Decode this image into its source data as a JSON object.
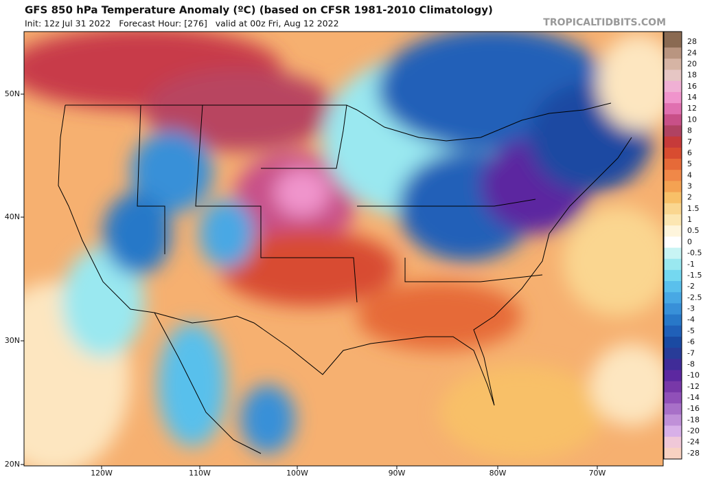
{
  "header": {
    "title": "GFS 850 hPa Temperature Anomaly (ºC) (based on CFSR 1981-2010 Climatology)",
    "subtitle": "Init: 12z Jul 31 2022   Forecast Hour: [276]   valid at 00z Fri, Aug 12 2022",
    "watermark": "TROPICALTIDBITS.COM"
  },
  "map": {
    "lat_labels": [
      "50N",
      "40N",
      "30N",
      "20N"
    ],
    "lon_labels": [
      "120W",
      "110W",
      "100W",
      "90W",
      "80W",
      "70W"
    ]
  },
  "colorbar": {
    "levels": [
      28,
      24,
      20,
      18,
      16,
      14,
      12,
      10,
      8,
      7,
      6,
      5,
      4,
      3,
      2,
      1.5,
      1,
      0.5,
      0,
      -0.5,
      -1,
      -1.5,
      -2,
      -2.5,
      -3,
      -4,
      -5,
      -6,
      -7,
      -8,
      -10,
      -12,
      -14,
      -16,
      -18,
      -20,
      -24,
      -28
    ],
    "colors": [
      "#8a6a52",
      "#b99580",
      "#d6b4a4",
      "#e6c6c4",
      "#f0b0d4",
      "#f094cc",
      "#e070b0",
      "#c85088",
      "#b04262",
      "#c63a3a",
      "#d84c30",
      "#e66a38",
      "#f08848",
      "#f4a252",
      "#f8c068",
      "#fad690",
      "#fce6b2",
      "#fef5dc",
      "#ffffff",
      "#c8f4f4",
      "#9ae8f0",
      "#74d8f0",
      "#5ac0ec",
      "#48a8e4",
      "#3890d8",
      "#2878c8",
      "#2060b8",
      "#1a4aa2",
      "#283c98",
      "#402c98",
      "#5c28a0",
      "#7838a8",
      "#9050b8",
      "#a870c8",
      "#c090d8",
      "#d8b0e8",
      "#f0c8d8",
      "#f8d2c2"
    ]
  }
}
